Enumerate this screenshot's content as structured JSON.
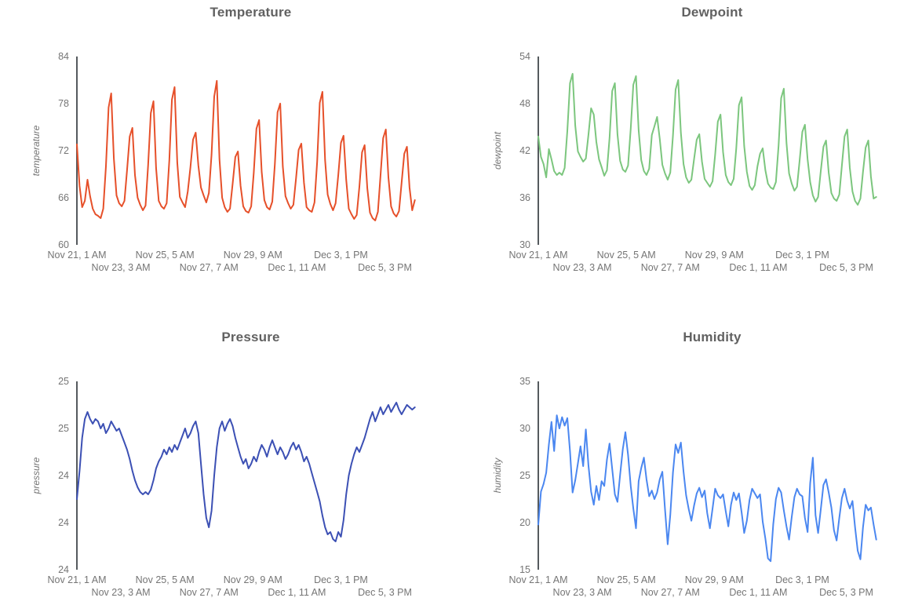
{
  "page": {
    "background": "#ffffff"
  },
  "chart_data": [
    {
      "type": "line",
      "title": "Temperature",
      "xlabel": "",
      "ylabel": "temperature",
      "series_color": "#e6502a",
      "legend": "none",
      "grid": false,
      "ylim": [
        60,
        84
      ],
      "y_tick_values": [
        84,
        78,
        72,
        66,
        60
      ],
      "y_tick_labels": [
        "84",
        "78",
        "72",
        "66",
        "60"
      ],
      "x_span_hours": 395,
      "x_step_hours": 3,
      "x_tick_hours": [
        0,
        50,
        100,
        150,
        200,
        250,
        300,
        350
      ],
      "x_tick_labels": [
        "Nov 21, 1 AM",
        "Nov 23, 3 AM",
        "Nov 25, 5 AM",
        "Nov 27, 7 AM",
        "Nov 29, 9 AM",
        "Dec 1, 11 AM",
        "Dec 3, 1 PM",
        "Dec 5, 3 PM"
      ],
      "values": [
        72.8,
        67.5,
        64.8,
        65.6,
        68.3,
        66.2,
        64.6,
        63.9,
        63.7,
        63.4,
        64.6,
        70.0,
        77.5,
        79.3,
        71.0,
        66.3,
        65.3,
        64.9,
        65.6,
        69.5,
        73.8,
        74.9,
        68.9,
        66.0,
        65.1,
        64.4,
        65.0,
        70.2,
        76.8,
        78.3,
        69.8,
        65.6,
        64.9,
        64.6,
        65.3,
        70.8,
        78.5,
        80.1,
        70.5,
        66.1,
        65.4,
        64.8,
        66.8,
        69.9,
        73.4,
        74.3,
        70.1,
        67.3,
        66.3,
        65.4,
        66.6,
        71.5,
        78.9,
        80.9,
        70.9,
        66.0,
        64.8,
        64.2,
        64.6,
        67.8,
        71.2,
        71.9,
        67.5,
        64.9,
        64.3,
        64.1,
        64.9,
        69.2,
        74.8,
        75.9,
        69.3,
        65.7,
        64.8,
        64.5,
        65.5,
        70.3,
        76.9,
        78.0,
        70.0,
        66.2,
        65.3,
        64.6,
        65.1,
        68.5,
        72.1,
        72.9,
        67.9,
        64.8,
        64.4,
        64.2,
        65.4,
        70.6,
        78.1,
        79.5,
        70.8,
        66.4,
        65.2,
        64.4,
        65.3,
        68.9,
        73.0,
        73.9,
        68.3,
        64.6,
        63.9,
        63.3,
        63.8,
        67.4,
        71.8,
        72.7,
        67.2,
        64.1,
        63.4,
        63.1,
        64.2,
        68.8,
        73.6,
        74.7,
        68.6,
        64.9,
        64.0,
        63.6,
        64.3,
        67.9,
        71.6,
        72.5,
        67.3,
        64.4,
        65.7
      ]
    },
    {
      "type": "line",
      "title": "Dewpoint",
      "xlabel": "",
      "ylabel": "dewpoint",
      "series_color": "#7cc67e",
      "legend": "none",
      "grid": false,
      "ylim": [
        30,
        54
      ],
      "y_tick_values": [
        54,
        48,
        42,
        36,
        30
      ],
      "y_tick_labels": [
        "54",
        "48",
        "42",
        "36",
        "30"
      ],
      "x_span_hours": 395,
      "x_step_hours": 3,
      "x_tick_hours": [
        0,
        50,
        100,
        150,
        200,
        250,
        300,
        350
      ],
      "x_tick_labels": [
        "Nov 21, 1 AM",
        "Nov 23, 3 AM",
        "Nov 25, 5 AM",
        "Nov 27, 7 AM",
        "Nov 29, 9 AM",
        "Dec 1, 11 AM",
        "Dec 3, 1 PM",
        "Dec 5, 3 PM"
      ],
      "values": [
        43.8,
        41.2,
        40.3,
        38.6,
        42.2,
        40.9,
        39.4,
        38.9,
        39.2,
        38.9,
        39.8,
        44.5,
        50.6,
        51.8,
        45.2,
        41.9,
        41.2,
        40.6,
        41.0,
        44.0,
        47.4,
        46.6,
        43.1,
        40.9,
        39.9,
        38.8,
        39.5,
        43.6,
        49.6,
        50.6,
        44.1,
        40.7,
        39.6,
        39.3,
        40.1,
        44.8,
        50.4,
        51.5,
        44.6,
        40.8,
        39.4,
        38.9,
        39.7,
        44.0,
        45.1,
        46.3,
        43.5,
        40.2,
        39.1,
        38.3,
        39.2,
        43.9,
        49.8,
        51.0,
        44.3,
        40.3,
        38.6,
        37.9,
        38.3,
        40.9,
        43.4,
        44.1,
        40.6,
        38.4,
        37.9,
        37.4,
        38.1,
        41.5,
        45.7,
        46.6,
        41.8,
        38.9,
        38.0,
        37.6,
        38.4,
        42.3,
        47.8,
        48.8,
        42.6,
        39.3,
        37.5,
        37.0,
        37.6,
        40.0,
        41.6,
        42.3,
        39.5,
        37.8,
        37.3,
        37.1,
        38.0,
        42.6,
        48.7,
        49.9,
        43.0,
        39.1,
        37.8,
        36.9,
        37.4,
        40.8,
        44.4,
        45.3,
        40.9,
        38.0,
        36.3,
        35.5,
        36.1,
        39.4,
        42.5,
        43.3,
        39.2,
        36.6,
        35.9,
        35.6,
        36.4,
        40.1,
        43.8,
        44.7,
        39.8,
        36.8,
        35.6,
        35.1,
        35.9,
        39.3,
        42.4,
        43.3,
        38.7,
        35.9,
        36.1
      ]
    },
    {
      "type": "line",
      "title": "Pressure",
      "xlabel": "",
      "ylabel": "pressure",
      "series_color": "#3c50b4",
      "legend": "none",
      "grid": false,
      "ylim": [
        24.1,
        24.9
      ],
      "y_tick_values": [
        24.9,
        24.7,
        24.5,
        24.3,
        24.1
      ],
      "y_tick_labels": [
        "25",
        "25",
        "24",
        "24",
        "24"
      ],
      "x_span_hours": 395,
      "x_step_hours": 3,
      "x_tick_hours": [
        0,
        50,
        100,
        150,
        200,
        250,
        300,
        350
      ],
      "x_tick_labels": [
        "Nov 21, 1 AM",
        "Nov 23, 3 AM",
        "Nov 25, 5 AM",
        "Nov 27, 7 AM",
        "Nov 29, 9 AM",
        "Dec 1, 11 AM",
        "Dec 3, 1 PM",
        "Dec 5, 3 PM"
      ],
      "values": [
        24.4,
        24.52,
        24.66,
        24.74,
        24.77,
        24.74,
        24.72,
        24.74,
        24.73,
        24.7,
        24.72,
        24.68,
        24.7,
        24.73,
        24.71,
        24.69,
        24.7,
        24.67,
        24.64,
        24.61,
        24.57,
        24.52,
        24.48,
        24.45,
        24.43,
        24.42,
        24.43,
        24.42,
        24.44,
        24.48,
        24.53,
        24.56,
        24.58,
        24.61,
        24.59,
        24.62,
        24.6,
        24.63,
        24.61,
        24.64,
        24.67,
        24.7,
        24.66,
        24.68,
        24.71,
        24.73,
        24.68,
        24.55,
        24.42,
        24.32,
        24.28,
        24.35,
        24.5,
        24.62,
        24.7,
        24.73,
        24.69,
        24.72,
        24.74,
        24.71,
        24.66,
        24.62,
        24.58,
        24.55,
        24.57,
        24.53,
        24.55,
        24.58,
        24.56,
        24.6,
        24.63,
        24.61,
        24.58,
        24.62,
        24.65,
        24.62,
        24.59,
        24.62,
        24.6,
        24.57,
        24.59,
        24.62,
        24.64,
        24.61,
        24.63,
        24.6,
        24.56,
        24.58,
        24.55,
        24.51,
        24.47,
        24.43,
        24.39,
        24.33,
        24.28,
        24.25,
        24.26,
        24.23,
        24.22,
        24.26,
        24.24,
        24.31,
        24.42,
        24.5,
        24.55,
        24.59,
        24.62,
        24.6,
        24.63,
        24.66,
        24.7,
        24.74,
        24.77,
        24.73,
        24.76,
        24.79,
        24.76,
        24.78,
        24.8,
        24.77,
        24.79,
        24.81,
        24.78,
        24.76,
        24.78,
        24.8,
        24.79,
        24.78,
        24.79
      ]
    },
    {
      "type": "line",
      "title": "Humidity",
      "xlabel": "",
      "ylabel": "humidity",
      "series_color": "#4b87f0",
      "legend": "none",
      "grid": false,
      "ylim": [
        15,
        35
      ],
      "y_tick_values": [
        35,
        30,
        25,
        20,
        15
      ],
      "y_tick_labels": [
        "35",
        "30",
        "25",
        "20",
        "15"
      ],
      "x_span_hours": 395,
      "x_step_hours": 3,
      "x_tick_hours": [
        0,
        50,
        100,
        150,
        200,
        250,
        300,
        350
      ],
      "x_tick_labels": [
        "Nov 21, 1 AM",
        "Nov 23, 3 AM",
        "Nov 25, 5 AM",
        "Nov 27, 7 AM",
        "Nov 29, 9 AM",
        "Dec 1, 11 AM",
        "Dec 3, 1 PM",
        "Dec 5, 3 PM"
      ],
      "values": [
        19.8,
        23.3,
        24.1,
        25.3,
        28.3,
        30.7,
        27.6,
        31.4,
        30.0,
        31.2,
        30.3,
        31.1,
        27.6,
        23.2,
        24.5,
        26.3,
        28.1,
        26.0,
        29.9,
        26.1,
        23.3,
        21.9,
        23.9,
        22.4,
        24.4,
        23.9,
        26.7,
        28.4,
        25.7,
        23.0,
        22.2,
        25.1,
        27.8,
        29.6,
        27.2,
        23.9,
        21.5,
        19.4,
        24.4,
        25.8,
        26.9,
        24.6,
        22.8,
        23.4,
        22.5,
        23.2,
        24.6,
        25.4,
        21.4,
        17.7,
        20.8,
        25.3,
        28.3,
        27.4,
        28.5,
        25.4,
        22.9,
        21.4,
        20.2,
        21.8,
        23.1,
        23.7,
        22.7,
        23.4,
        21.0,
        19.4,
        21.5,
        23.6,
        22.9,
        22.6,
        23.0,
        21.2,
        19.6,
        21.9,
        23.2,
        22.4,
        23.1,
        21.1,
        18.9,
        20.2,
        22.4,
        23.6,
        23.1,
        22.6,
        23.0,
        20.1,
        18.3,
        16.2,
        15.9,
        19.8,
        22.5,
        23.7,
        23.2,
        21.3,
        19.6,
        18.2,
        20.6,
        22.7,
        23.6,
        23.0,
        22.8,
        20.5,
        19.0,
        24.2,
        26.9,
        20.8,
        18.9,
        21.4,
        24.0,
        24.6,
        23.2,
        21.6,
        19.2,
        18.1,
        20.5,
        22.6,
        23.6,
        22.3,
        21.5,
        22.3,
        19.5,
        17.0,
        16.1,
        19.5,
        21.9,
        21.3,
        21.6,
        19.8,
        18.2
      ]
    }
  ]
}
